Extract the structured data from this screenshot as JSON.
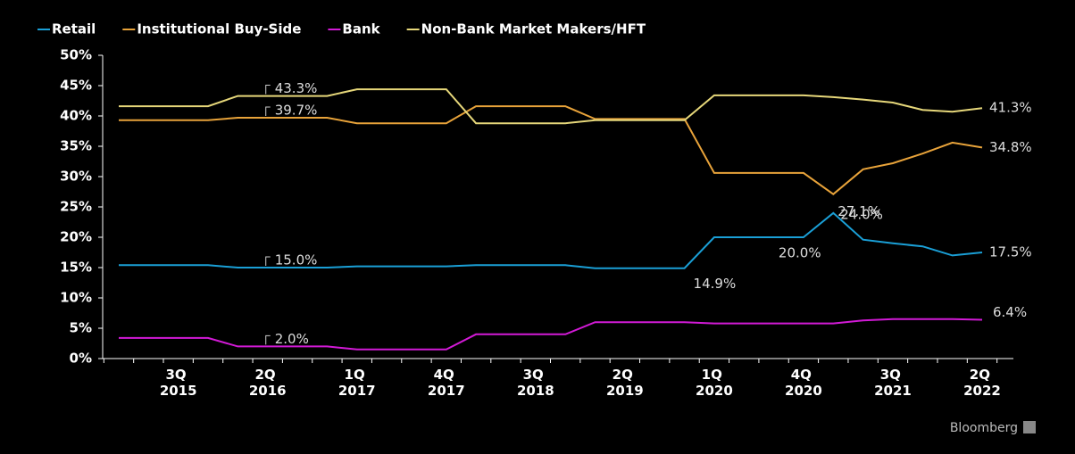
{
  "chart_data": {
    "type": "line",
    "footer": "Bloomberg",
    "categories": [
      null,
      null,
      "3Q 2015",
      null,
      null,
      "2Q 2016",
      null,
      null,
      "1Q 2017",
      null,
      null,
      "4Q 2017",
      null,
      null,
      "3Q 2018",
      null,
      null,
      "2Q 2019",
      null,
      null,
      "1Q 2020",
      null,
      null,
      "4Q 2020",
      null,
      null,
      "3Q 2021",
      null,
      null,
      "2Q 2022"
    ],
    "series": [
      {
        "name": "Retail",
        "color": "#1a9fd6",
        "values": [
          15.4,
          15.4,
          15.4,
          15.4,
          15.0,
          15.0,
          15.0,
          15.0,
          15.2,
          15.2,
          15.2,
          15.2,
          15.4,
          15.4,
          15.4,
          15.4,
          14.9,
          14.9,
          14.9,
          14.9,
          20.0,
          20.0,
          20.0,
          20.0,
          24.0,
          19.6,
          19.0,
          18.5,
          17.0,
          17.5
        ],
        "value_labels": [
          null,
          null,
          null,
          null,
          null,
          "15.0%",
          null,
          null,
          null,
          null,
          null,
          null,
          null,
          null,
          null,
          null,
          null,
          null,
          null,
          "14.9%",
          null,
          null,
          null,
          "20.0%",
          "24.0%",
          null,
          null,
          null,
          null,
          "17.5%"
        ]
      },
      {
        "name": "Institutional Buy-Side",
        "color": "#e8a33a",
        "values": [
          39.3,
          39.3,
          39.3,
          39.3,
          39.7,
          39.7,
          39.7,
          39.7,
          38.8,
          38.8,
          38.8,
          38.8,
          41.6,
          41.6,
          41.6,
          41.6,
          39.5,
          39.5,
          39.5,
          39.5,
          30.6,
          30.6,
          30.6,
          30.6,
          27.1,
          31.2,
          32.2,
          33.8,
          35.6,
          34.8
        ],
        "value_labels": [
          null,
          null,
          null,
          null,
          null,
          "39.7%",
          null,
          null,
          null,
          null,
          null,
          null,
          null,
          null,
          null,
          null,
          null,
          null,
          null,
          null,
          null,
          null,
          null,
          null,
          "27.1%",
          null,
          null,
          null,
          null,
          "34.8%"
        ]
      },
      {
        "name": "Bank",
        "color": "#d21ad6",
        "values": [
          3.4,
          3.4,
          3.4,
          3.4,
          2.0,
          2.0,
          2.0,
          2.0,
          1.5,
          1.5,
          1.5,
          1.5,
          4.0,
          4.0,
          4.0,
          4.0,
          6.0,
          6.0,
          6.0,
          6.0,
          5.8,
          5.8,
          5.8,
          5.8,
          5.8,
          6.3,
          6.5,
          6.5,
          6.5,
          6.4
        ],
        "value_labels": [
          null,
          null,
          null,
          null,
          null,
          "2.0%",
          null,
          null,
          null,
          null,
          null,
          null,
          null,
          null,
          null,
          null,
          null,
          null,
          null,
          null,
          null,
          null,
          null,
          null,
          null,
          null,
          null,
          null,
          null,
          "6.4%"
        ]
      },
      {
        "name": "Non-Bank Market Makers/HFT",
        "color": "#e6d77a",
        "values": [
          41.6,
          41.6,
          41.6,
          41.6,
          43.3,
          43.3,
          43.3,
          43.3,
          44.4,
          44.4,
          44.4,
          44.4,
          38.8,
          38.8,
          38.8,
          38.8,
          39.3,
          39.3,
          39.3,
          39.3,
          43.4,
          43.4,
          43.4,
          43.4,
          43.1,
          42.7,
          42.2,
          41.0,
          40.7,
          41.3
        ],
        "value_labels": [
          null,
          null,
          null,
          null,
          null,
          "43.3%",
          null,
          null,
          null,
          null,
          null,
          null,
          null,
          null,
          null,
          null,
          null,
          null,
          null,
          null,
          null,
          null,
          null,
          null,
          null,
          null,
          null,
          null,
          null,
          "41.3%"
        ]
      }
    ],
    "ylim": [
      0,
      50
    ],
    "yticks": [
      {
        "value": 0,
        "label": "0%"
      },
      {
        "value": 5,
        "label": "5%"
      },
      {
        "value": 10,
        "label": "10%"
      },
      {
        "value": 15,
        "label": "15%"
      },
      {
        "value": 20,
        "label": "20%"
      },
      {
        "value": 25,
        "label": "25%"
      },
      {
        "value": 30,
        "label": "30%"
      },
      {
        "value": 35,
        "label": "35%"
      },
      {
        "value": 40,
        "label": "40%"
      },
      {
        "value": 45,
        "label": "45%"
      },
      {
        "value": 50,
        "label": "50%"
      }
    ],
    "grid": false
  }
}
